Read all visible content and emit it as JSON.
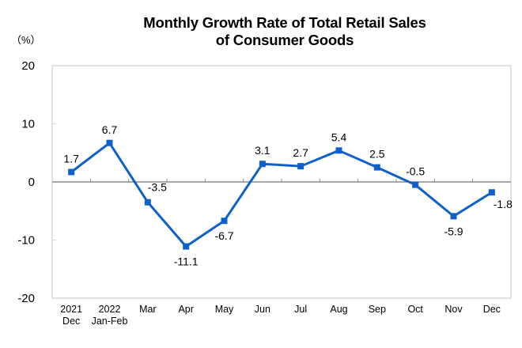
{
  "chart_data": {
    "type": "line",
    "title": [
      "Monthly Growth Rate of Total Retail Sales",
      "of Consumer Goods"
    ],
    "unit_label": "（%）",
    "xlabel": "",
    "ylabel": "%",
    "ylim": [
      -20,
      20
    ],
    "yticks": [
      -20,
      -10,
      0,
      10,
      20
    ],
    "grid": false,
    "legend": "none",
    "categories": [
      [
        "2021",
        "Dec"
      ],
      [
        "2022",
        "Jan-Feb"
      ],
      [
        "Mar"
      ],
      [
        "Apr"
      ],
      [
        "May"
      ],
      [
        "Jun"
      ],
      [
        "Jul"
      ],
      [
        "Aug"
      ],
      [
        "Sep"
      ],
      [
        "Oct"
      ],
      [
        "Nov"
      ],
      [
        "Dec"
      ]
    ],
    "series": [
      {
        "name": "Monthly Growth Rate",
        "color": "#1060cc",
        "values": [
          1.7,
          6.7,
          -3.5,
          -11.1,
          -6.7,
          3.1,
          2.7,
          5.4,
          2.5,
          -0.5,
          -5.9,
          -1.8
        ],
        "labels": [
          "1.7",
          "6.7",
          "-3.5",
          "-11.1",
          "-6.7",
          "3.1",
          "2.7",
          "5.4",
          "2.5",
          "-0.5",
          "-5.9",
          "-1.8"
        ]
      }
    ],
    "frame_color": "#d9d9d9",
    "axis_color": "#8c8c8c"
  }
}
